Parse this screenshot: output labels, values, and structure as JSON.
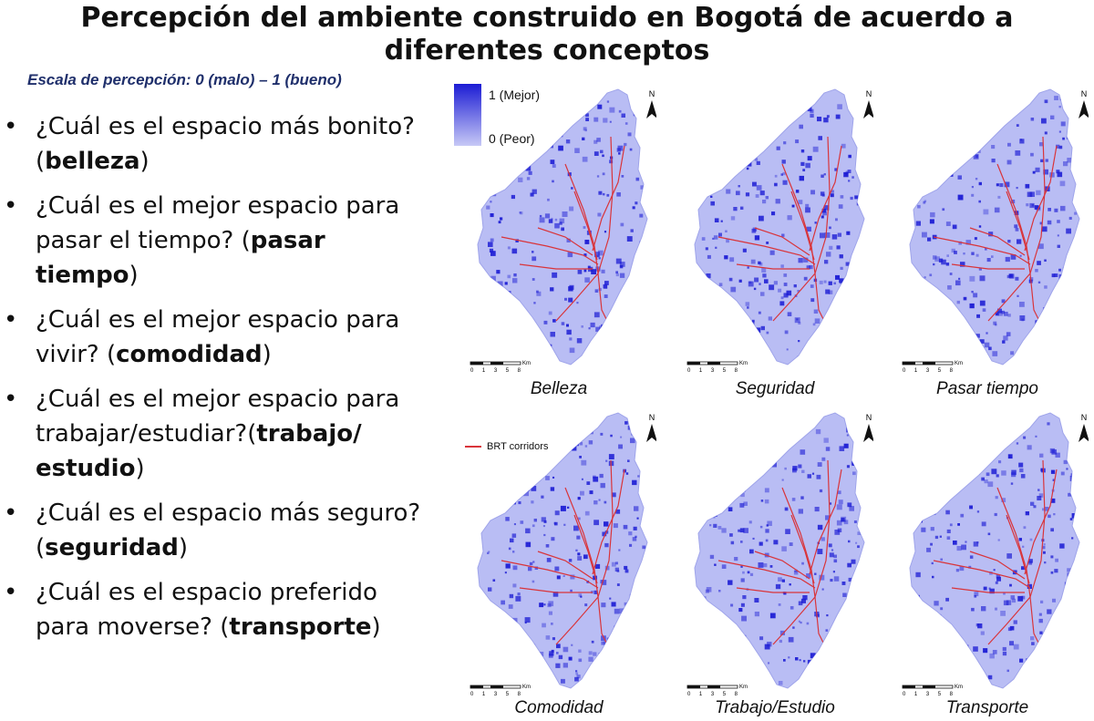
{
  "title": "Percepción del ambiente construido en Bogotá de acuerdo a diferentes conceptos",
  "scale_note": "Escala de percepción: 0 (malo) – 1 (bueno)",
  "questions": [
    {
      "pre": "¿Cuál es el espacio más bonito? (",
      "bold": "belleza",
      "post": ")"
    },
    {
      "pre": "¿Cuál es el mejor espacio para pasar el tiempo? (",
      "bold": "pasar tiempo",
      "post": ")"
    },
    {
      "pre": "¿Cuál es el mejor espacio para vivir? (",
      "bold": "comodidad",
      "post": ")"
    },
    {
      "pre": "¿Cuál es el mejor espacio para trabajar/estudiar?(",
      "bold": "trabajo/ estudio",
      "post": ")"
    },
    {
      "pre": "¿Cuál es el espacio más seguro? (",
      "bold": "seguridad",
      "post": ")"
    },
    {
      "pre": "¿Cuál es el espacio preferido para moverse? (",
      "bold": "transporte",
      "post": ")"
    }
  ],
  "legend": {
    "high": "1 (Mejor)",
    "low": "0 (Peor)",
    "brt": "BRT corridors"
  },
  "colors": {
    "high": "#1c1cd4",
    "low": "#c7c9f6",
    "brt": "#d9343a"
  },
  "maps": [
    {
      "caption": "Belleza"
    },
    {
      "caption": "Seguridad"
    },
    {
      "caption": "Pasar tiempo"
    },
    {
      "caption": "Comodidad"
    },
    {
      "caption": "Trabajo/Estudio"
    },
    {
      "caption": "Transporte"
    }
  ],
  "north": "N",
  "scalebar": {
    "ticks": "0 1 3 5 8",
    "unit": "Km"
  }
}
